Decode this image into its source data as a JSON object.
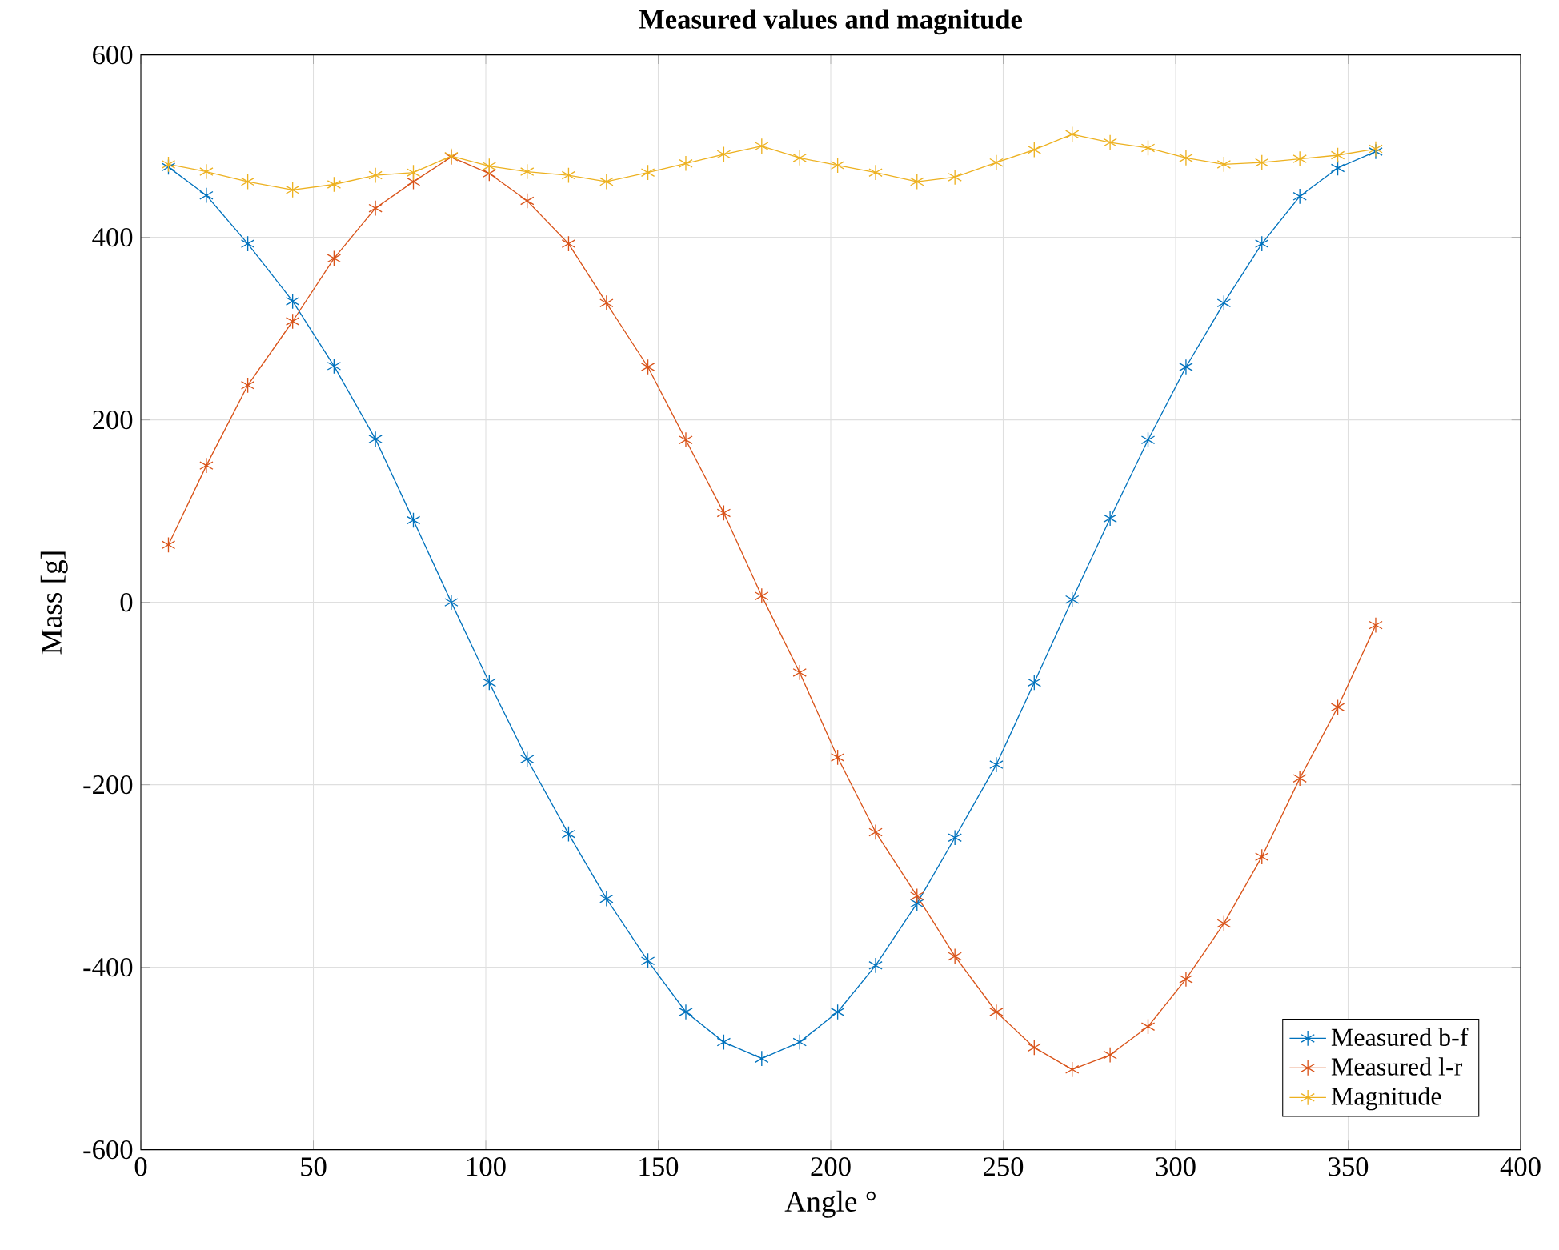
{
  "chart_data": {
    "type": "line",
    "title": "Measured values and magnitude",
    "xlabel": "Angle °",
    "ylabel": "Mass [g]",
    "x": [
      8,
      19,
      31,
      44,
      56,
      68,
      79,
      90,
      101,
      112,
      124,
      135,
      147,
      158,
      169,
      180,
      191,
      202,
      213,
      225,
      236,
      248,
      259,
      270,
      281,
      292,
      303,
      314,
      325,
      336,
      347,
      358
    ],
    "series": [
      {
        "name": "Measured b-f",
        "color": "#0072bd",
        "values": [
          477,
          446,
          393,
          330,
          259,
          179,
          90,
          0,
          -88,
          -172,
          -254,
          -325,
          -393,
          -449,
          -482,
          -500,
          -482,
          -449,
          -398,
          -330,
          -258,
          -178,
          -88,
          3,
          92,
          178,
          258,
          328,
          393,
          445,
          476,
          494
        ]
      },
      {
        "name": "Measured l-r",
        "color": "#d95319",
        "values": [
          63,
          150,
          238,
          308,
          377,
          432,
          461,
          488,
          470,
          440,
          393,
          328,
          258,
          178,
          98,
          7,
          -77,
          -170,
          -252,
          -322,
          -388,
          -449,
          -488,
          -512,
          -496,
          -465,
          -413,
          -352,
          -279,
          -193,
          -115,
          -25
        ]
      },
      {
        "name": "Magnitude",
        "color": "#edb120",
        "values": [
          480,
          472,
          461,
          452,
          458,
          468,
          471,
          489,
          478,
          472,
          468,
          461,
          471,
          481,
          491,
          500,
          487,
          479,
          471,
          461,
          466,
          482,
          496,
          513,
          504,
          498,
          487,
          480,
          482,
          486,
          490,
          497
        ]
      }
    ],
    "xlim": [
      0,
      400
    ],
    "xticks": [
      0,
      50,
      100,
      150,
      200,
      250,
      300,
      350,
      400
    ],
    "ylim": [
      -600,
      600
    ],
    "yticks": [
      -600,
      -400,
      -200,
      0,
      200,
      400,
      600
    ],
    "grid": true,
    "legend": "bottom right",
    "marker": "cross",
    "line_style": "solid"
  }
}
